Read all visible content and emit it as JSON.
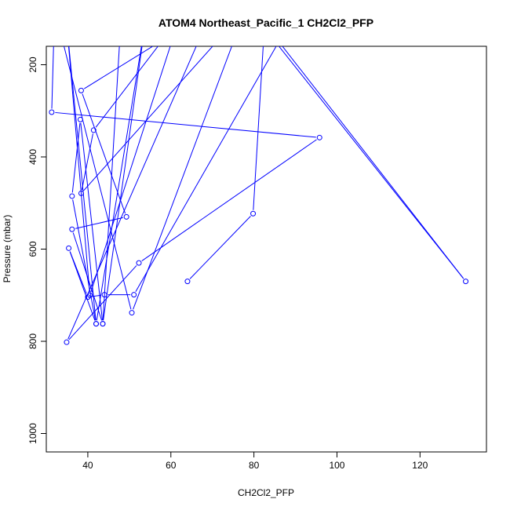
{
  "chart_data": {
    "type": "line",
    "title": "ATOM4 Northeast_Pacific_1 CH2Cl2_PFP",
    "xlabel": "CH2Cl2_PFP",
    "ylabel": "Pressure (mbar)",
    "xlim": [
      30,
      136
    ],
    "ylim": [
      1040,
      160
    ],
    "y_reversed": true,
    "grid": false,
    "xticks": [
      40,
      60,
      80,
      100,
      120
    ],
    "yticks": [
      200,
      400,
      600,
      800,
      1000
    ],
    "series": [
      {
        "color": "#0000ff",
        "marker": "open-circle",
        "points": [
          {
            "x": 64.0,
            "y": 670
          },
          {
            "x": 79.8,
            "y": 523
          },
          {
            "x": 82.5,
            "y": 120
          },
          {
            "x": 131.0,
            "y": 670
          },
          {
            "x": 86.0,
            "y": 150
          },
          {
            "x": 51.1,
            "y": 699
          },
          {
            "x": 44.0,
            "y": 699
          },
          {
            "x": 40.0,
            "y": 704
          },
          {
            "x": 35.4,
            "y": 598
          },
          {
            "x": 42.0,
            "y": 762
          },
          {
            "x": 36.2,
            "y": 485
          },
          {
            "x": 38.2,
            "y": 319
          },
          {
            "x": 43.6,
            "y": 762
          },
          {
            "x": 36.2,
            "y": 557
          },
          {
            "x": 49.3,
            "y": 530
          },
          {
            "x": 38.4,
            "y": 256
          },
          {
            "x": 70.0,
            "y": 80
          },
          {
            "x": 34.9,
            "y": 802
          },
          {
            "x": 52.3,
            "y": 630
          },
          {
            "x": 95.8,
            "y": 358
          },
          {
            "x": 31.3,
            "y": 303
          },
          {
            "x": 32.0,
            "y": 80
          },
          {
            "x": 50.6,
            "y": 738
          },
          {
            "x": 78.0,
            "y": 80
          },
          {
            "x": 38.4,
            "y": 479
          },
          {
            "x": 41.4,
            "y": 342
          },
          {
            "x": 62.0,
            "y": 100
          },
          {
            "x": 40.5,
            "y": 700
          },
          {
            "x": 35.0,
            "y": 120
          },
          {
            "x": 42.0,
            "y": 762
          },
          {
            "x": 54.0,
            "y": 100
          },
          {
            "x": 43.6,
            "y": 762
          },
          {
            "x": 48.0,
            "y": 100
          }
        ]
      }
    ]
  }
}
